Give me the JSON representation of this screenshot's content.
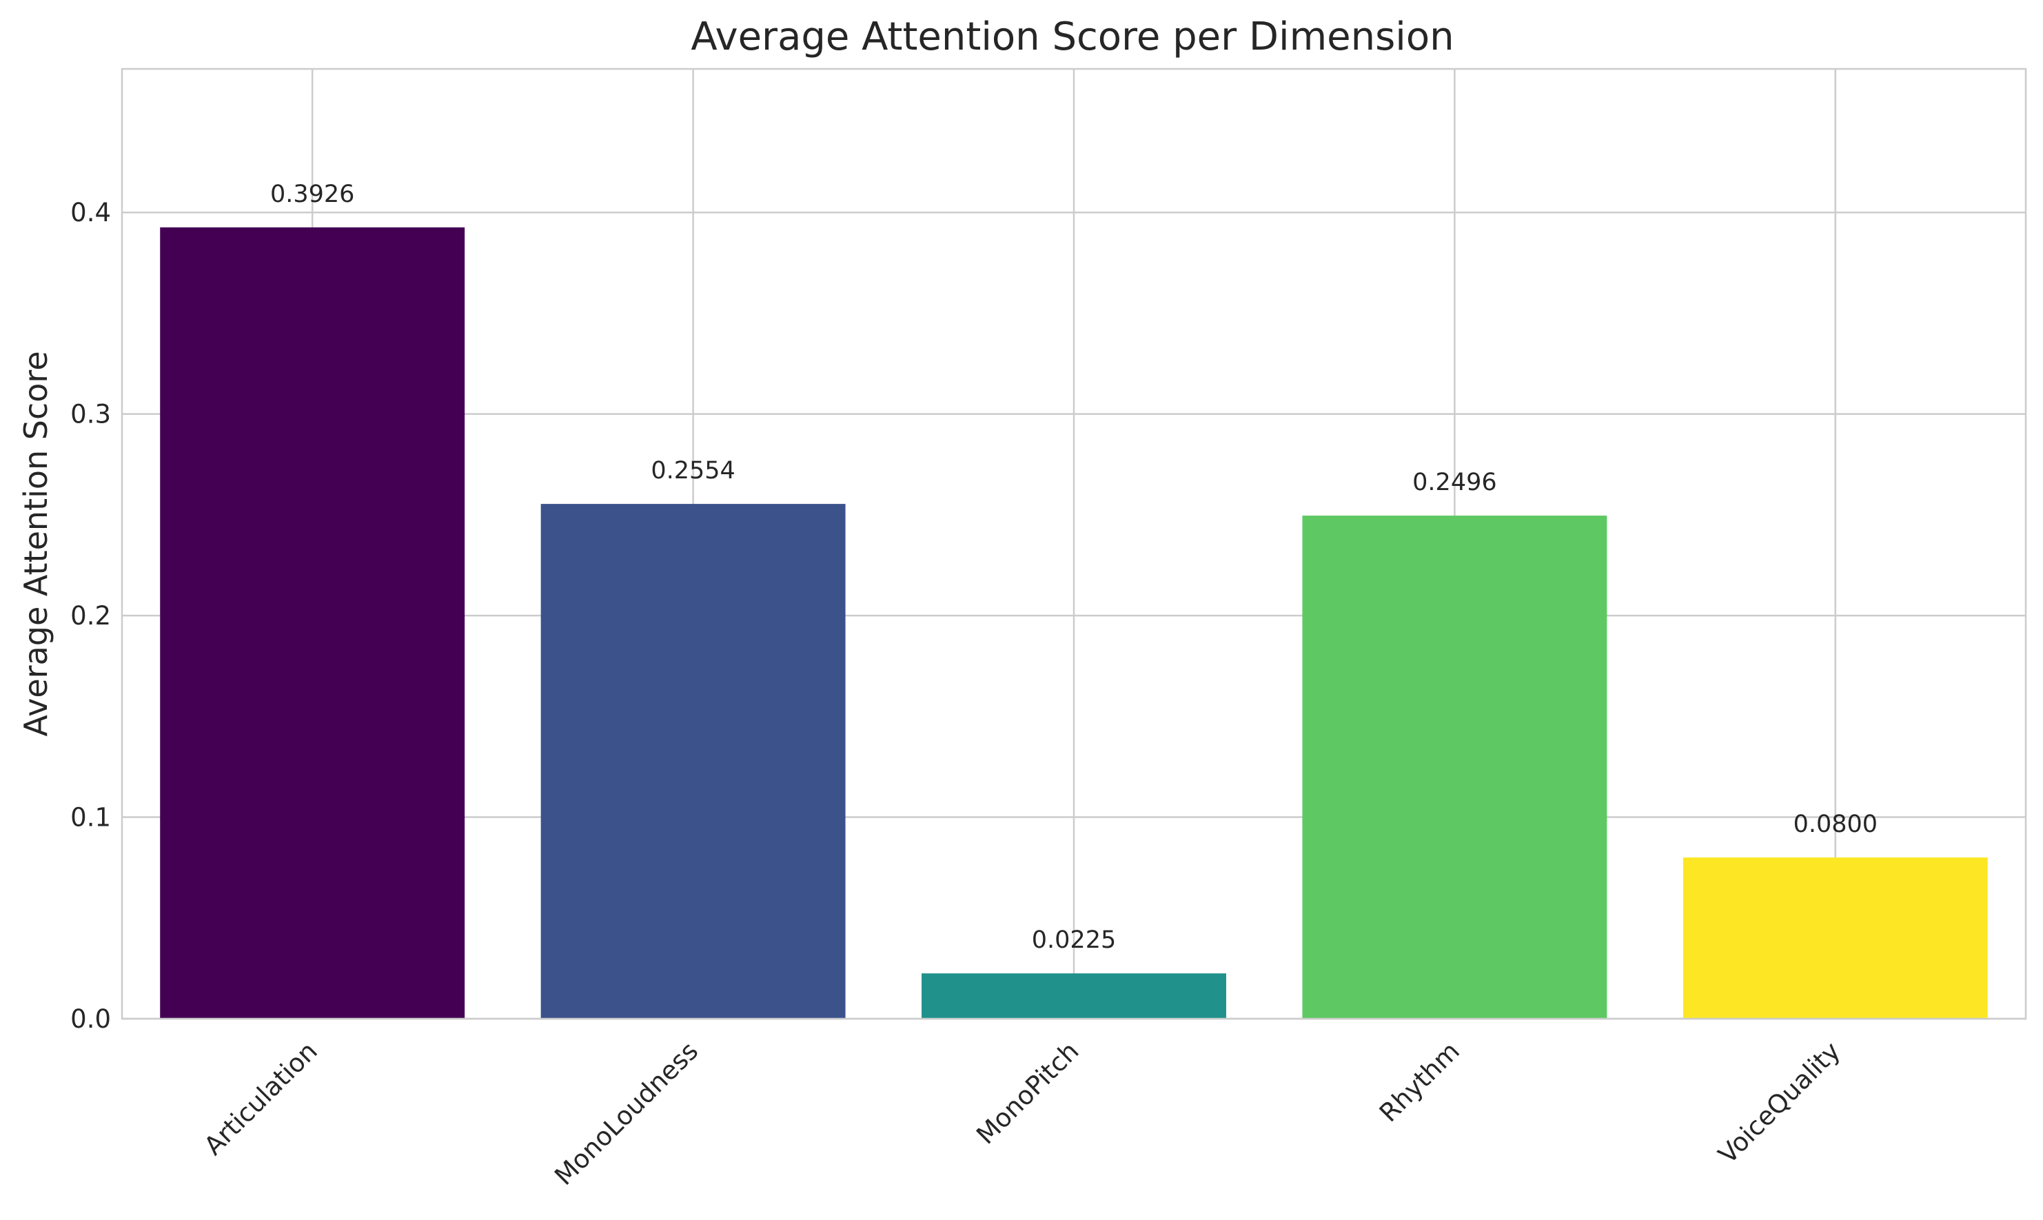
{
  "chart_data": {
    "type": "bar",
    "title": "Average Attention Score per Dimension",
    "xlabel": "",
    "ylabel": "Average Attention Score",
    "categories": [
      "Articulation",
      "MonoLoudness",
      "MonoPitch",
      "Rhythm",
      "VoiceQuality"
    ],
    "values": [
      0.3926,
      0.2554,
      0.0225,
      0.2496,
      0.08
    ],
    "value_labels": [
      "0.3926",
      "0.2554",
      "0.0225",
      "0.2496",
      "0.0800"
    ],
    "colors": [
      "#440154",
      "#3b528b",
      "#21918c",
      "#5ec962",
      "#fde725"
    ],
    "ylim": [
      0,
      0.4712
    ],
    "yticks": [
      0.0,
      0.1,
      0.2,
      0.3,
      0.4
    ],
    "ytick_labels": [
      "0.0",
      "0.1",
      "0.2",
      "0.3",
      "0.4"
    ],
    "grid": true,
    "legend": "none"
  }
}
